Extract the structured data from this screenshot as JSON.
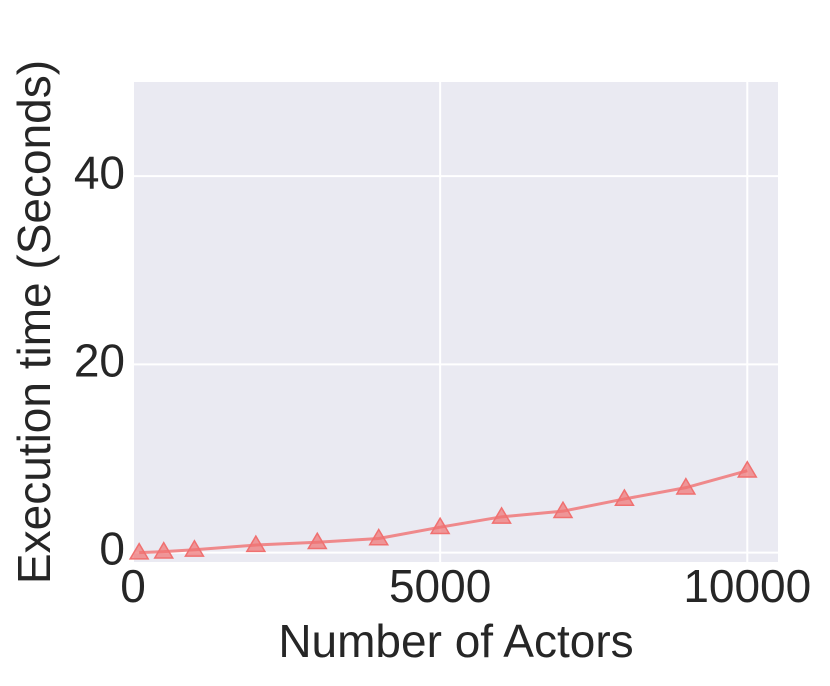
{
  "chart_data": {
    "type": "line",
    "x_label": "Number of Actors",
    "y_label": "Execution time (Seconds)",
    "x": [
      100,
      500,
      1000,
      2000,
      3000,
      4000,
      5000,
      6000,
      7000,
      8000,
      9000,
      10000
    ],
    "series": [
      {
        "color": "#f07070",
        "values": [
          0.0,
          0.1,
          0.3,
          0.8,
          1.1,
          1.5,
          2.7,
          3.8,
          4.4,
          5.7,
          6.9,
          8.7
        ]
      }
    ],
    "xlim": [
      0,
      10500
    ],
    "xticks": [
      0,
      5000,
      10000
    ],
    "ylim": [
      -1,
      50
    ],
    "yticks": [
      0,
      20,
      40
    ],
    "grid": true,
    "marker": "triangle"
  }
}
